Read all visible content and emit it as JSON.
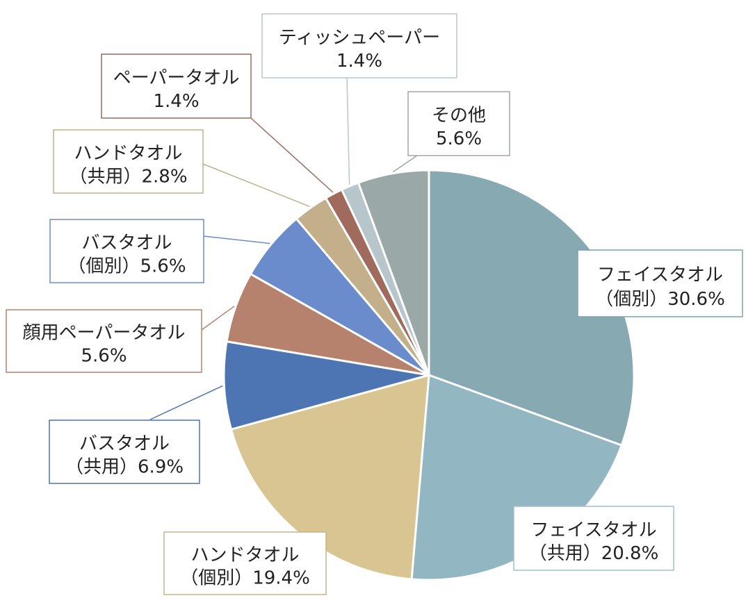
{
  "chart_data": {
    "type": "pie",
    "title": "",
    "start_angle_deg": 0,
    "direction": "clockwise",
    "slices": [
      {
        "line1": "フェイスタオル",
        "line2": "（個別）",
        "value": 30.6,
        "value_label": "30.6%",
        "color": "#87a9b1",
        "border": "#7da3ad"
      },
      {
        "line1": "フェイスタオル",
        "line2": "（共用）",
        "value": 20.8,
        "value_label": "20.8%",
        "color": "#92b7c2",
        "border": "#9fc1ca"
      },
      {
        "line1": "ハンドタオル",
        "line2": "（個別）",
        "value": 19.4,
        "value_label": "19.4%",
        "color": "#d9c591",
        "border": "#c8b486"
      },
      {
        "line1": "バスタオル",
        "line2": "（共用）",
        "value": 6.9,
        "value_label": "6.9%",
        "color": "#4e75b3",
        "border": "#4c72b0"
      },
      {
        "line1": "顔用ペーパータオル",
        "line2": "",
        "value": 5.6,
        "value_label": "5.6%",
        "color": "#b6826d",
        "border": "#b6826d"
      },
      {
        "line1": "バスタオル",
        "line2": "（個別）",
        "value": 5.6,
        "value_label": "5.6%",
        "color": "#6a8ccc",
        "border": "#6a8ccc"
      },
      {
        "line1": "ハンドタオル",
        "line2": "（共用）",
        "value": 2.8,
        "value_label": "2.8%",
        "color": "#c3b08a",
        "border": "#c3b08a"
      },
      {
        "line1": "ペーパータオル",
        "line2": "",
        "value": 1.4,
        "value_label": "1.4%",
        "color": "#a06a5c",
        "border": "#9e6a5c"
      },
      {
        "line1": "ティッシュペーパー",
        "line2": "",
        "value": 1.4,
        "value_label": "1.4%",
        "color": "#b6c6cb",
        "border": "#b6c6cb"
      },
      {
        "line1": "その他",
        "line2": "",
        "value": 5.6,
        "value_label": "5.6%",
        "color": "#9aa8a7",
        "border": "#9aa8a7"
      }
    ]
  }
}
